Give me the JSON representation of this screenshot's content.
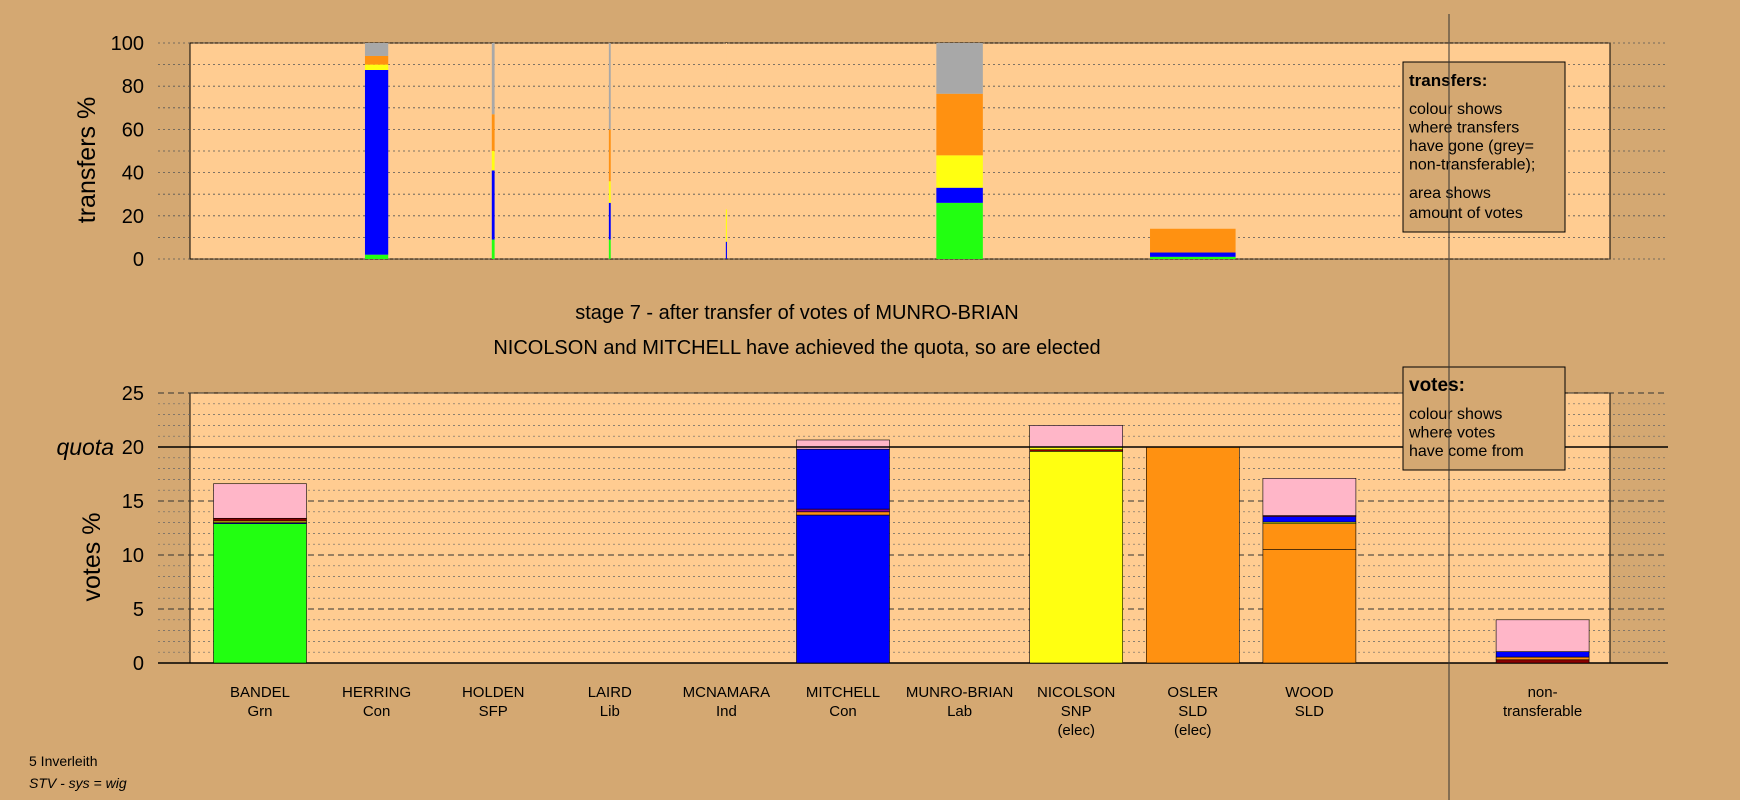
{
  "footer": {
    "ward": "5 Inverleith",
    "system": "STV - sys = wig"
  },
  "colors": {
    "background": "#d4a872",
    "plot_bg": "#ffcc91",
    "Grn": "#22ff11",
    "Con": "#0000ff",
    "SFP": "#ffff11",
    "Lib": "#ff9111",
    "Ind": "#ff88cc",
    "Lab": "#ff88cc",
    "SNP": "#ffff11",
    "SLD": "#ff9111",
    "nontransferable": "#a8a8a8",
    "pink": "#ffb6c8",
    "purple": "#880099",
    "darkred": "#8b0000"
  },
  "chart_data": [
    {
      "type": "bar",
      "id": "transfers",
      "ylabel": "transfers %",
      "ylim": [
        0,
        100
      ],
      "yticks": [
        0,
        20,
        40,
        60,
        80,
        100
      ],
      "grid": true,
      "legend_box": {
        "title": "transfers:",
        "lines1": [
          "colour shows",
          "where transfers",
          "have gone (grey=",
          "non-transferable);"
        ],
        "lines2": [
          "area shows",
          "amount of votes"
        ]
      },
      "bars": [
        {
          "candidate": "HERRING",
          "slot": 1,
          "width": 0.25,
          "segments": [
            {
              "v": 2,
              "c": "#22ff11"
            },
            {
              "v": 85.5,
              "c": "#0000ff"
            },
            {
              "v": 2.5,
              "c": "#ffff11"
            },
            {
              "v": 4,
              "c": "#ff9111"
            },
            {
              "v": 6,
              "c": "#a8a8a8"
            }
          ]
        },
        {
          "candidate": "HOLDEN",
          "slot": 2,
          "width": 0.03,
          "segments": [
            {
              "v": 9,
              "c": "#22ff11"
            },
            {
              "v": 32,
              "c": "#0000ff"
            },
            {
              "v": 9,
              "c": "#ffff11"
            },
            {
              "v": 17,
              "c": "#ff9111"
            },
            {
              "v": 33,
              "c": "#a8a8a8"
            }
          ]
        },
        {
          "candidate": "LAIRD",
          "slot": 3,
          "width": 0.02,
          "segments": [
            {
              "v": 9,
              "c": "#22ff11"
            },
            {
              "v": 17,
              "c": "#0000ff"
            },
            {
              "v": 10,
              "c": "#ffff11"
            },
            {
              "v": 24,
              "c": "#ff9111"
            },
            {
              "v": 40,
              "c": "#a8a8a8"
            }
          ]
        },
        {
          "candidate": "MCNAMARA",
          "slot": 4,
          "width": 0.012,
          "segments": [
            {
              "v": 8,
              "c": "#0000ff"
            },
            {
              "v": 15,
              "c": "#ffff11"
            },
            {
              "v": 77,
              "c": "#ffcc91"
            }
          ]
        },
        {
          "candidate": "MUNRO-BRIAN",
          "slot": 6,
          "width": 0.5,
          "segments": [
            {
              "v": 26,
              "c": "#22ff11"
            },
            {
              "v": 7,
              "c": "#0000ff"
            },
            {
              "v": 15,
              "c": "#ffff11"
            },
            {
              "v": 28.5,
              "c": "#ff9111"
            },
            {
              "v": 23.5,
              "c": "#a8a8a8"
            }
          ]
        },
        {
          "candidate": "OSLER",
          "slot": 8,
          "width": 0.92,
          "segments": [
            {
              "v": 1,
              "c": "#22ff11"
            },
            {
              "v": 2,
              "c": "#0000ff"
            },
            {
              "v": 11,
              "c": "#ff9111"
            }
          ]
        }
      ]
    },
    {
      "type": "bar",
      "id": "votes",
      "title": "stage 7 - after transfer of votes of MUNRO-BRIAN",
      "subtitle": "NICOLSON and MITCHELL have achieved the quota, so are elected",
      "ylabel": "votes %",
      "ylim": [
        0,
        25
      ],
      "yticks": [
        0,
        5,
        10,
        15,
        20,
        25
      ],
      "quota": 20,
      "quota_label": "quota",
      "grid": true,
      "legend_box": {
        "title": "votes:",
        "lines1": [
          "colour shows",
          "where votes",
          "have come from"
        ]
      },
      "categories": [
        {
          "name": "BANDEL",
          "party": "Grn",
          "note": ""
        },
        {
          "name": "HERRING",
          "party": "Con",
          "note": ""
        },
        {
          "name": "HOLDEN",
          "party": "SFP",
          "note": ""
        },
        {
          "name": "LAIRD",
          "party": "Lib",
          "note": ""
        },
        {
          "name": "MCNAMARA",
          "party": "Ind",
          "note": ""
        },
        {
          "name": "MITCHELL",
          "party": "Con",
          "note": ""
        },
        {
          "name": "MUNRO-BRIAN",
          "party": "Lab",
          "note": ""
        },
        {
          "name": "NICOLSON",
          "party": "SNP",
          "note": "(elec)"
        },
        {
          "name": "OSLER",
          "party": "SLD",
          "note": "(elec)"
        },
        {
          "name": "WOOD",
          "party": "SLD",
          "note": ""
        }
      ],
      "nontransferable_label": [
        "non-",
        "transferable"
      ],
      "bars": [
        {
          "candidate": "BANDEL",
          "slot": 0,
          "segments": [
            {
              "v": 12.9,
              "c": "#22ff11"
            },
            {
              "v": 0.1,
              "c": "#0000ff"
            },
            {
              "v": 0.15,
              "c": "#ffff11"
            },
            {
              "v": 0.25,
              "c": "#8b0000"
            },
            {
              "v": 3.2,
              "c": "#ffb6c8"
            }
          ]
        },
        {
          "candidate": "MITCHELL",
          "slot": 5,
          "segments": [
            {
              "v": 13.7,
              "c": "#0000ff"
            },
            {
              "v": 0.3,
              "c": "#ff9111"
            },
            {
              "v": 0.25,
              "c": "#880099"
            },
            {
              "v": 5.55,
              "c": "#0000ff"
            },
            {
              "v": 0.85,
              "c": "#ffb6c8"
            }
          ]
        },
        {
          "candidate": "NICOLSON",
          "slot": 7,
          "segments": [
            {
              "v": 19.6,
              "c": "#ffff11"
            },
            {
              "v": 0.15,
              "c": "#8b0000"
            },
            {
              "v": 0.25,
              "c": "#ffff11"
            },
            {
              "v": 2.0,
              "c": "#ffb6c8"
            }
          ]
        },
        {
          "candidate": "OSLER",
          "slot": 8,
          "segments": [
            {
              "v": 20,
              "c": "#ff9111"
            }
          ]
        },
        {
          "candidate": "WOOD",
          "slot": 9,
          "segments": [
            {
              "v": 10.5,
              "c": "#ff9111"
            },
            {
              "v": 2.4,
              "c": "#ff9111"
            },
            {
              "v": 0.15,
              "c": "#ffff11"
            },
            {
              "v": 0.5,
              "c": "#0000ff"
            },
            {
              "v": 0.1,
              "c": "#880099"
            },
            {
              "v": 3.45,
              "c": "#ffb6c8"
            }
          ]
        },
        {
          "candidate": "nontransferable",
          "slot": 11,
          "segments": [
            {
              "v": 0.3,
              "c": "#8b0000"
            },
            {
              "v": 0.25,
              "c": "#ff9111"
            },
            {
              "v": 0.5,
              "c": "#0000ff"
            },
            {
              "v": 2.95,
              "c": "#ffb6c8"
            }
          ]
        }
      ]
    }
  ]
}
